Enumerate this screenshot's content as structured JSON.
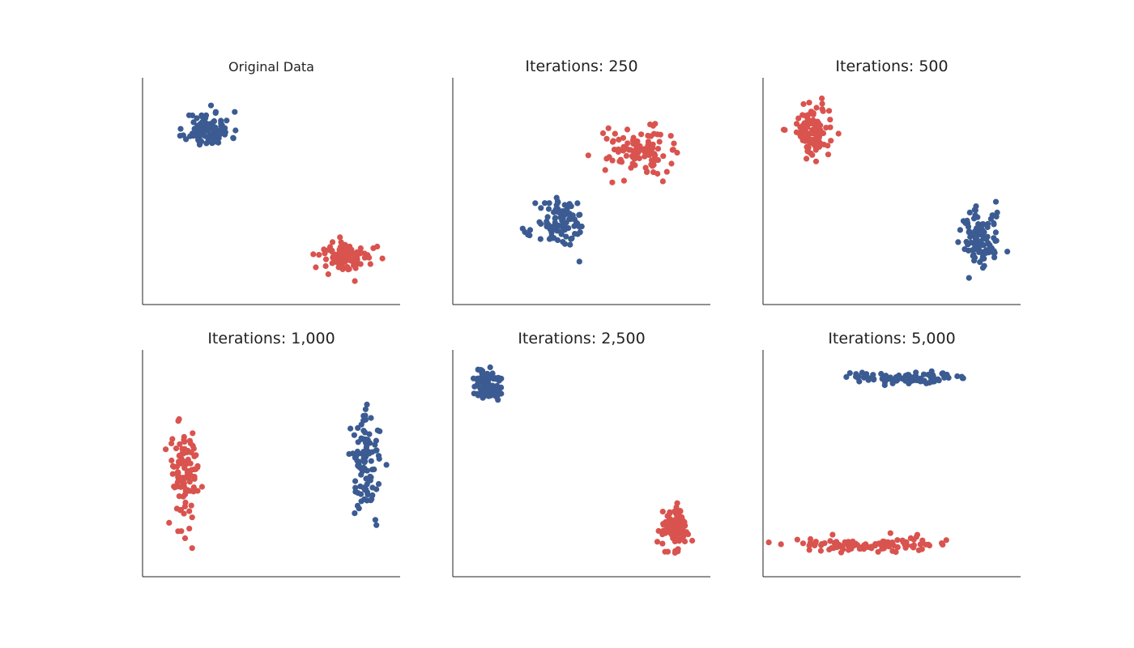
{
  "colors": {
    "cluster_a": "#3b5b92",
    "cluster_b": "#d9534f",
    "axis": "#222222",
    "background": "#ffffff"
  },
  "chart_data": [
    {
      "type": "scatter",
      "title": "Original Data",
      "xlabel": "",
      "ylabel": "",
      "xlim": [
        0,
        100
      ],
      "ylim": [
        0,
        100
      ],
      "ticks": "none",
      "grid": false,
      "series": [
        {
          "color": "#3b5b92",
          "cluster": {
            "cx": 25,
            "cy": 78,
            "sx": 9,
            "sy": 8,
            "n": 100,
            "seed": 11
          }
        },
        {
          "color": "#d9534f",
          "cluster": {
            "cx": 80,
            "cy": 20,
            "sx": 10,
            "sy": 7,
            "n": 100,
            "seed": 12
          }
        }
      ]
    },
    {
      "type": "scatter",
      "title": "Iterations: 250",
      "xlabel": "",
      "ylabel": "",
      "xlim": [
        0,
        100
      ],
      "ylim": [
        0,
        100
      ],
      "ticks": "none",
      "grid": false,
      "series": [
        {
          "color": "#3b5b92",
          "cluster": {
            "cx": 42,
            "cy": 35,
            "sx": 10,
            "sy": 11,
            "n": 100,
            "seed": 21
          }
        },
        {
          "color": "#d9534f",
          "cluster": {
            "cx": 72,
            "cy": 68,
            "sx": 13,
            "sy": 10,
            "n": 100,
            "seed": 22
          }
        }
      ]
    },
    {
      "type": "scatter",
      "title": "Iterations: 500",
      "xlabel": "",
      "ylabel": "",
      "xlim": [
        0,
        100
      ],
      "ylim": [
        0,
        100
      ],
      "ticks": "none",
      "grid": false,
      "series": [
        {
          "color": "#3b5b92",
          "cluster": {
            "cx": 85,
            "cy": 28,
            "sx": 8,
            "sy": 14,
            "n": 100,
            "seed": 31
          }
        },
        {
          "color": "#d9534f",
          "cluster": {
            "cx": 18,
            "cy": 78,
            "sx": 8,
            "sy": 12,
            "n": 100,
            "seed": 32
          }
        }
      ]
    },
    {
      "type": "scatter",
      "title": "Iterations: 1,000",
      "xlabel": "",
      "ylabel": "",
      "xlim": [
        0,
        100
      ],
      "ylim": [
        0,
        100
      ],
      "ticks": "none",
      "grid": false,
      "series": [
        {
          "color": "#3b5b92",
          "cluster": {
            "cx": 88,
            "cy": 50,
            "sx": 6,
            "sy": 22,
            "n": 100,
            "seed": 41
          }
        },
        {
          "color": "#d9534f",
          "cluster": {
            "cx": 15,
            "cy": 45,
            "sx": 6,
            "sy": 25,
            "n": 100,
            "seed": 42
          }
        }
      ]
    },
    {
      "type": "scatter",
      "title": "Iterations: 2,500",
      "xlabel": "",
      "ylabel": "",
      "xlim": [
        0,
        100
      ],
      "ylim": [
        0,
        100
      ],
      "ticks": "none",
      "grid": false,
      "series": [
        {
          "color": "#3b5b92",
          "cluster": {
            "cx": 12,
            "cy": 86,
            "sx": 6,
            "sy": 7,
            "n": 100,
            "seed": 51
          }
        },
        {
          "color": "#d9534f",
          "cluster": {
            "cx": 87,
            "cy": 20,
            "sx": 5,
            "sy": 10,
            "n": 100,
            "seed": 52
          }
        }
      ]
    },
    {
      "type": "scatter",
      "title": "Iterations: 5,000",
      "xlabel": "",
      "ylabel": "",
      "xlim": [
        0,
        100
      ],
      "ylim": [
        0,
        100
      ],
      "ticks": "none",
      "grid": false,
      "series": [
        {
          "color": "#3b5b92",
          "cluster": {
            "cx": 55,
            "cy": 89,
            "sx": 25,
            "sy": 3,
            "n": 100,
            "seed": 61
          }
        },
        {
          "color": "#d9534f",
          "cluster": {
            "cx": 40,
            "cy": 13,
            "sx": 28,
            "sy": 3,
            "n": 100,
            "seed": 62
          }
        }
      ]
    }
  ]
}
